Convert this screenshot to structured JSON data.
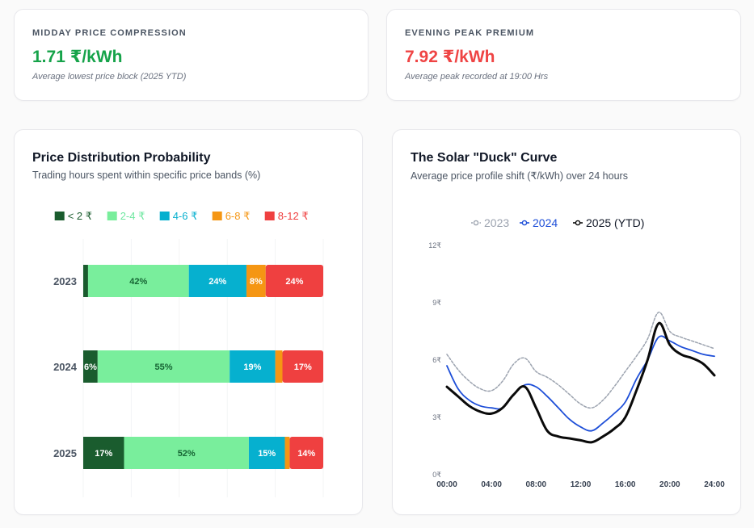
{
  "kpis": {
    "midday": {
      "label": "MIDDAY PRICE COMPRESSION",
      "value": "1.71 ₹/kWh",
      "note": "Average lowest price block (2025 YTD)",
      "color": "#16a34a"
    },
    "evening": {
      "label": "EVENING PEAK PREMIUM",
      "value": "7.92 ₹/kWh",
      "note": "Average peak recorded at 19:00 Hrs",
      "color": "#ef4444"
    }
  },
  "distribution": {
    "title": "Price Distribution Probability",
    "subtitle": "Trading hours spent within specific price bands (%)"
  },
  "duck": {
    "title": "The Solar \"Duck\" Curve",
    "subtitle": "Average price profile shift (₹/kWh) over 24 hours"
  },
  "chart_data": [
    {
      "type": "bar",
      "stacked": true,
      "orientation": "horizontal",
      "categories": [
        "2023",
        "2024",
        "2025"
      ],
      "series": [
        {
          "name": "< 2 ₹",
          "color": "#1a5c2e",
          "label_color": "#1a5c2e",
          "values": [
            2,
            6,
            17
          ],
          "labels": [
            "",
            "6%",
            "17%"
          ]
        },
        {
          "name": "2-4 ₹",
          "color": "#79ee9c",
          "label_color": "#6ee7a0",
          "values": [
            42,
            55,
            52
          ],
          "labels": [
            "42%",
            "55%",
            "52%"
          ]
        },
        {
          "name": "4-6 ₹",
          "color": "#06b0cf",
          "label_color": "#06b0cf",
          "values": [
            24,
            19,
            15
          ],
          "labels": [
            "24%",
            "19%",
            "15%"
          ]
        },
        {
          "name": "6-8 ₹",
          "color": "#f59613",
          "label_color": "#f59613",
          "values": [
            8,
            3,
            2
          ],
          "labels": [
            "8%",
            "",
            ""
          ]
        },
        {
          "name": "8-12 ₹",
          "color": "#ef4040",
          "label_color": "#ef4040",
          "values": [
            24,
            17,
            14
          ],
          "labels": [
            "24%",
            "17%",
            "14%"
          ]
        }
      ],
      "xlim": [
        0,
        100
      ],
      "legend": "top"
    },
    {
      "type": "line",
      "x": [
        "00:00",
        "01:00",
        "02:00",
        "03:00",
        "04:00",
        "05:00",
        "06:00",
        "07:00",
        "08:00",
        "09:00",
        "10:00",
        "11:00",
        "12:00",
        "13:00",
        "14:00",
        "15:00",
        "16:00",
        "17:00",
        "18:00",
        "19:00",
        "20:00",
        "21:00",
        "22:00",
        "23:00",
        "24:00"
      ],
      "xticks": [
        "00:00",
        "04:00",
        "08:00",
        "12:00",
        "16:00",
        "20:00",
        "24:00"
      ],
      "yticks": [
        "0₹",
        "3₹",
        "6₹",
        "9₹",
        "12₹"
      ],
      "ylim": [
        0,
        12
      ],
      "series": [
        {
          "name": "2023",
          "color": "#9ca3af",
          "dashed": true,
          "values": [
            6.3,
            5.5,
            4.9,
            4.5,
            4.4,
            4.9,
            5.8,
            6.1,
            5.4,
            5.1,
            4.7,
            4.2,
            3.7,
            3.5,
            3.9,
            4.6,
            5.4,
            6.2,
            7.1,
            8.5,
            7.5,
            7.2,
            7.0,
            6.8,
            6.6
          ]
        },
        {
          "name": "2024",
          "color": "#1d4ed8",
          "dashed": false,
          "values": [
            5.7,
            4.5,
            3.9,
            3.6,
            3.5,
            3.5,
            4.2,
            4.7,
            4.6,
            4.1,
            3.5,
            2.9,
            2.5,
            2.3,
            2.7,
            3.2,
            3.8,
            5.0,
            6.0,
            7.2,
            7.0,
            6.7,
            6.5,
            6.3,
            6.2
          ]
        },
        {
          "name": "2025 (YTD)",
          "color": "#0a0a0a",
          "dashed": false,
          "values": [
            4.6,
            4.1,
            3.6,
            3.3,
            3.2,
            3.5,
            4.2,
            4.6,
            3.5,
            2.3,
            2.0,
            1.9,
            1.8,
            1.7,
            2.0,
            2.4,
            3.0,
            4.4,
            6.0,
            7.92,
            6.8,
            6.3,
            6.1,
            5.8,
            5.2
          ]
        }
      ],
      "legend": "top"
    }
  ]
}
